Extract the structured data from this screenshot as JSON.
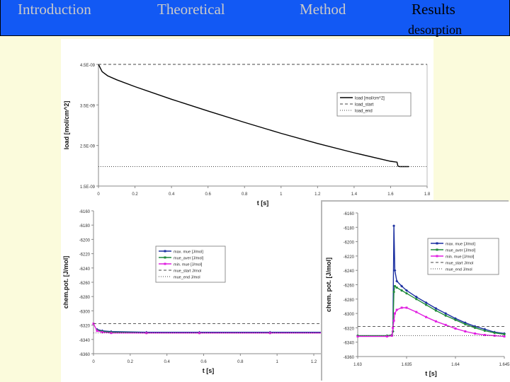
{
  "nav": {
    "tabs": [
      {
        "label": "Introduction",
        "active": false
      },
      {
        "label": "Theoretical",
        "active": false
      },
      {
        "label": "Method",
        "active": false
      },
      {
        "label": "Results",
        "active": true
      }
    ],
    "subtitle": "desorption"
  },
  "colors": {
    "nav_bar": "#1259f4",
    "slide_bg": "#fbfbdc",
    "max_mue": "#1a2fa0",
    "mue_aver": "#1f8a3a",
    "min_mue": "#e01ee0"
  },
  "chart_data": [
    {
      "type": "line",
      "xlabel": "t [s]",
      "ylabel": "load [mol/cm^2]",
      "xlim": [
        0,
        1.8
      ],
      "ylim": [
        1.5e-09,
        4.5e-09
      ],
      "xticks": [
        "0",
        "0.2",
        "0.4",
        "0.6",
        "0.8",
        "1",
        "1.2",
        "1.4",
        "1.6",
        "1.8"
      ],
      "yticks": [
        "4.5E-09",
        "3.5E-09",
        "2.5E-09",
        "1.5E-09"
      ],
      "legend": [
        "load [mol/cm^2]",
        "load_start",
        "load_end"
      ],
      "legend_position": "right",
      "grid": false,
      "series": [
        {
          "name": "load [mol/cm^2]",
          "style": "solid",
          "x": [
            0,
            0.02,
            0.05,
            0.1,
            0.2,
            0.4,
            0.6,
            0.8,
            1.0,
            1.2,
            1.4,
            1.6,
            1.635,
            1.64,
            1.65,
            1.7
          ],
          "y": [
            4.5e-09,
            4.32e-09,
            4.22e-09,
            4.12e-09,
            3.95e-09,
            3.64e-09,
            3.35e-09,
            3.07e-09,
            2.8e-09,
            2.55e-09,
            2.32e-09,
            2.11e-09,
            2.09e-09,
            1.99e-09,
            1.98e-09,
            1.98e-09
          ]
        },
        {
          "name": "load_start",
          "style": "dashed",
          "x": [
            0,
            1.8
          ],
          "y": [
            4.5e-09,
            4.5e-09
          ]
        },
        {
          "name": "load_end",
          "style": "dotted",
          "x": [
            0,
            1.8
          ],
          "y": [
            1.98e-09,
            1.98e-09
          ]
        }
      ]
    },
    {
      "type": "line",
      "xlabel": "t [s]",
      "ylabel": "chem.pot. [J/mol]",
      "xlim": [
        0,
        1.3
      ],
      "ylim": [
        -6360,
        -6160
      ],
      "xticks": [
        "0",
        "0.2",
        "0.4",
        "0.6",
        "0.8",
        "1",
        "1.2"
      ],
      "yticks": [
        "-6160",
        "-6180",
        "-6200",
        "-6220",
        "-6240",
        "-6260",
        "-6280",
        "-6300",
        "-6320",
        "-6340",
        "-6360"
      ],
      "legend": [
        "max. mue [J/mol]",
        "mue_aver [J/mol]",
        "min. mue [J/mol]",
        "mue_start J/mol",
        "mue_end J/mol"
      ],
      "legend_position": "center-right",
      "grid": false,
      "series": [
        {
          "name": "max. mue [J/mol]",
          "x": [
            0.02,
            0.05,
            0.1,
            0.3,
            0.6,
            1.0,
            1.3
          ],
          "y": [
            -6326,
            -6328,
            -6329,
            -6330,
            -6330,
            -6330,
            -6330
          ]
        },
        {
          "name": "mue_aver [J/mol]",
          "x": [
            0.02,
            0.05,
            0.1,
            0.3,
            0.6,
            1.0,
            1.3
          ],
          "y": [
            -6327,
            -6329,
            -6330,
            -6331,
            -6331,
            -6331,
            -6331
          ]
        },
        {
          "name": "min. mue [J/mol]",
          "x": [
            0,
            0.02,
            0.05,
            0.1,
            0.3,
            0.6,
            1.0,
            1.3
          ],
          "y": [
            -6318,
            -6328,
            -6330,
            -6331,
            -6331,
            -6331,
            -6331,
            -6331
          ]
        },
        {
          "name": "mue_start J/mol",
          "style": "dashed",
          "x": [
            0,
            1.3
          ],
          "y": [
            -6318,
            -6318
          ]
        },
        {
          "name": "mue_end J/mol",
          "style": "dotted",
          "x": [
            0,
            1.3
          ],
          "y": [
            -6331,
            -6331
          ]
        }
      ]
    },
    {
      "type": "line",
      "xlabel": "t [s]",
      "ylabel": "chem. pot. [J/mol]",
      "xlim": [
        1.63,
        1.645
      ],
      "ylim": [
        -6360,
        -6160
      ],
      "xticks": [
        "1.63",
        "1.635",
        "1.64",
        "1.645"
      ],
      "yticks": [
        "-6160",
        "-6180",
        "-6200",
        "-6220",
        "-6240",
        "-6260",
        "-6280",
        "-6300",
        "-6320",
        "-6340",
        "-6360"
      ],
      "legend": [
        "max. mue [J/mol]",
        "mue_aver [J/mol]",
        "min. mue [J/mol]",
        "mue_start J/mol",
        "mue_end J/mol"
      ],
      "legend_position": "top-right",
      "grid": false,
      "series": [
        {
          "name": "max. mue [J/mol]",
          "x": [
            1.63,
            1.633,
            1.6335,
            1.6336,
            1.6337,
            1.6338,
            1.634,
            1.6345,
            1.635,
            1.636,
            1.637,
            1.638,
            1.639,
            1.64,
            1.641,
            1.642,
            1.643,
            1.644,
            1.645
          ],
          "y": [
            -6331,
            -6331,
            -6330,
            -6325,
            -6178,
            -6240,
            -6255,
            -6262,
            -6268,
            -6277,
            -6285,
            -6293,
            -6300,
            -6307,
            -6313,
            -6318,
            -6322,
            -6326,
            -6328
          ]
        },
        {
          "name": "mue_aver [J/mol]",
          "x": [
            1.63,
            1.633,
            1.6335,
            1.6336,
            1.6337,
            1.6338,
            1.634,
            1.6345,
            1.635,
            1.636,
            1.637,
            1.638,
            1.639,
            1.64,
            1.641,
            1.642,
            1.643,
            1.644,
            1.645
          ],
          "y": [
            -6331,
            -6331,
            -6330,
            -6325,
            -6270,
            -6262,
            -6264,
            -6268,
            -6272,
            -6280,
            -6288,
            -6296,
            -6303,
            -6309,
            -6315,
            -6320,
            -6324,
            -6327,
            -6329
          ]
        },
        {
          "name": "min. mue [J/mol]",
          "x": [
            1.63,
            1.633,
            1.6335,
            1.6336,
            1.6337,
            1.6338,
            1.634,
            1.6345,
            1.635,
            1.636,
            1.637,
            1.638,
            1.639,
            1.64,
            1.641,
            1.642,
            1.643,
            1.644,
            1.645
          ],
          "y": [
            -6332,
            -6332,
            -6331,
            -6320,
            -6310,
            -6300,
            -6295,
            -6292,
            -6292,
            -6298,
            -6305,
            -6311,
            -6316,
            -6321,
            -6325,
            -6328,
            -6330,
            -6331,
            -6332
          ]
        },
        {
          "name": "mue_start J/mol",
          "style": "dashed",
          "x": [
            1.63,
            1.645
          ],
          "y": [
            -6318,
            -6318
          ]
        },
        {
          "name": "mue_end J/mol",
          "style": "dotted",
          "x": [
            1.63,
            1.645
          ],
          "y": [
            -6331,
            -6331
          ]
        }
      ]
    }
  ]
}
